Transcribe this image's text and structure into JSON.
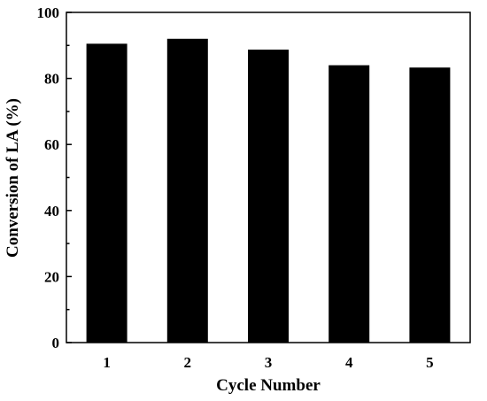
{
  "chart_data": {
    "type": "bar",
    "title": "",
    "xlabel": "Cycle Number",
    "ylabel": "Conversion of LA (%)",
    "categories": [
      "1",
      "2",
      "3",
      "4",
      "5"
    ],
    "values": [
      90.5,
      92.0,
      88.7,
      84.0,
      83.3
    ],
    "ylim": [
      0,
      100
    ],
    "yticks": [
      "0",
      "20",
      "40",
      "60",
      "80",
      "100"
    ],
    "grid": false,
    "legend": "none",
    "bar_color": "#000000"
  }
}
